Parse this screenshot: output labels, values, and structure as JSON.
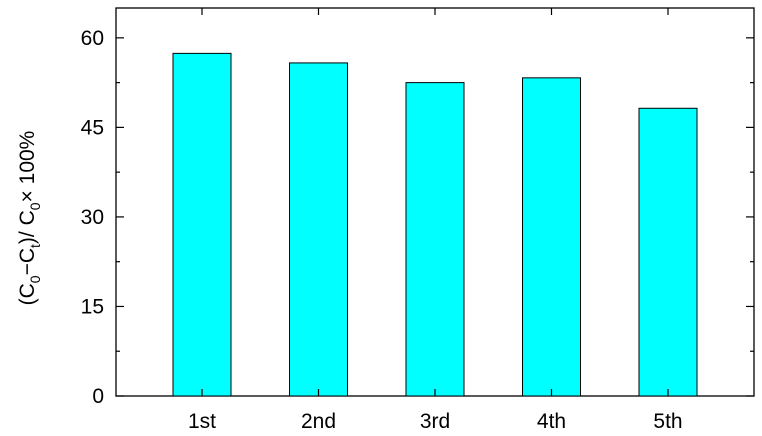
{
  "chart_data": {
    "type": "bar",
    "title": "",
    "xlabel": "",
    "ylabel": {
      "parts": [
        "(C",
        "0",
        "−C",
        "t",
        ")/ C",
        "0",
        "× 100%"
      ]
    },
    "categories": [
      "1st",
      "2nd",
      "3rd",
      "4th",
      "5th"
    ],
    "values": [
      57.4,
      55.8,
      52.5,
      53.3,
      48.2
    ],
    "ylim": [
      0,
      65
    ],
    "yticks": [
      0,
      15,
      30,
      45,
      60
    ],
    "yticks_text": [
      "0",
      "15",
      "30",
      "45",
      "60"
    ],
    "grid": false,
    "bar_color": "#00ffff",
    "edge_color": "#000000"
  }
}
